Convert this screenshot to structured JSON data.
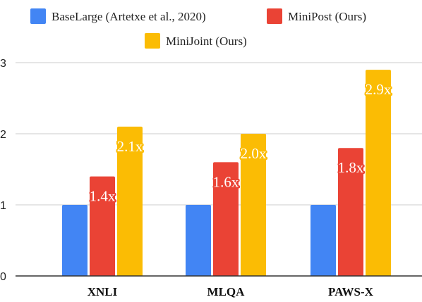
{
  "chart_data": {
    "type": "bar",
    "categories": [
      "XNLI",
      "MLQA",
      "PAWS-X"
    ],
    "series": [
      {
        "name": "BaseLarge (Artetxe et al., 2020)",
        "color": "#4285f4",
        "values": [
          1,
          1,
          1
        ],
        "labels": [
          "",
          "",
          ""
        ]
      },
      {
        "name": "MiniPost (Ours)",
        "color": "#ea4335",
        "values": [
          1.4,
          1.6,
          1.8
        ],
        "labels": [
          "1.4x",
          "1.6x",
          "1.8x"
        ]
      },
      {
        "name": "MiniJoint (Ours)",
        "color": "#fbbc04",
        "values": [
          2.1,
          2.0,
          2.9
        ],
        "labels": [
          "2.1x",
          "2.0x",
          "2.9x"
        ]
      }
    ],
    "ylim": [
      0,
      3
    ],
    "yticks": [
      "0",
      "1",
      "2",
      "3"
    ],
    "grid": true,
    "legend": "top",
    "gridline_color": "#cccccc",
    "axis_color": "#333333"
  }
}
